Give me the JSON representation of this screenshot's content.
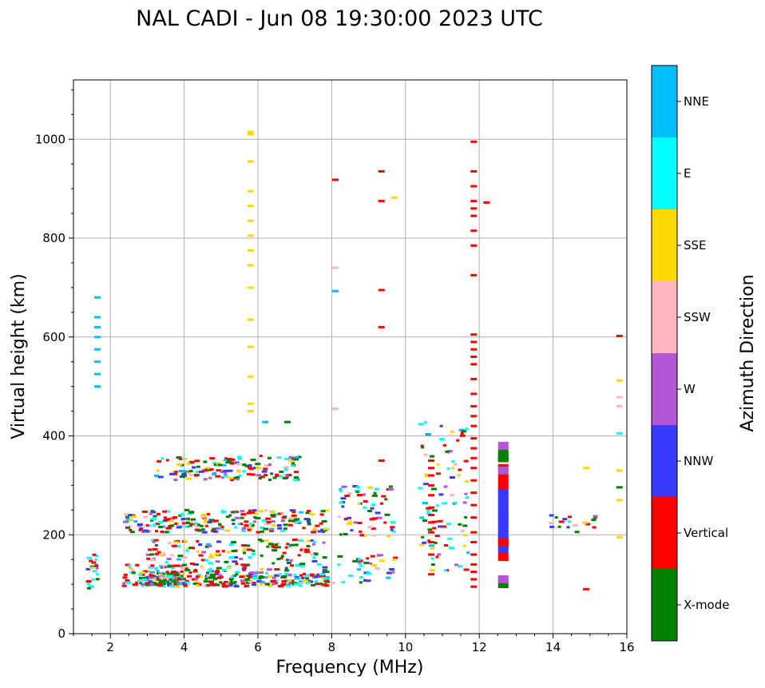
{
  "chart_data": {
    "type": "scatter",
    "title": "NAL CADI - Jun 08 19:30:00 2023 UTC",
    "xlabel": "Frequency (MHz)",
    "ylabel": "Virtual height (km)",
    "xlim": [
      1,
      16
    ],
    "ylim": [
      0,
      1120
    ],
    "x_ticks": [
      2,
      4,
      6,
      8,
      10,
      12,
      14,
      16
    ],
    "y_ticks": [
      0,
      200,
      400,
      600,
      800,
      1000
    ],
    "grid": true,
    "colorbar": {
      "label": "Azimuth Direction",
      "categories": [
        {
          "name": "X-mode",
          "color": "#008000"
        },
        {
          "name": "Vertical",
          "color": "#ff0000"
        },
        {
          "name": "NNW",
          "color": "#3a3aff"
        },
        {
          "name": "W",
          "color": "#b455d6"
        },
        {
          "name": "SSW",
          "color": "#ffb6c1"
        },
        {
          "name": "SSE",
          "color": "#ffd700"
        },
        {
          "name": "E",
          "color": "#00ffff"
        },
        {
          "name": "NNE",
          "color": "#00bfff"
        }
      ]
    },
    "clusters": [
      {
        "x": [
          1.4,
          1.7
        ],
        "y": [
          90,
          160
        ],
        "n": 20
      },
      {
        "x": [
          2.3,
          4.0
        ],
        "y": [
          95,
          140
        ],
        "n": 90
      },
      {
        "x": [
          3.0,
          7.9
        ],
        "y": [
          95,
          120
        ],
        "n": 220
      },
      {
        "x": [
          3.0,
          7.9
        ],
        "y": [
          120,
          190
        ],
        "n": 180
      },
      {
        "x": [
          2.4,
          7.9
        ],
        "y": [
          205,
          250
        ],
        "n": 220
      },
      {
        "x": [
          3.2,
          7.2
        ],
        "y": [
          310,
          360
        ],
        "n": 140
      },
      {
        "x": [
          8.0,
          9.8
        ],
        "y": [
          100,
          160
        ],
        "n": 35
      },
      {
        "x": [
          8.2,
          9.7
        ],
        "y": [
          195,
          300
        ],
        "n": 60
      },
      {
        "x": [
          10.4,
          11.7
        ],
        "y": [
          120,
          440
        ],
        "n": 90
      },
      {
        "x": [
          13.8,
          15.2
        ],
        "y": [
          205,
          240
        ],
        "n": 18
      }
    ],
    "series": [
      {
        "name": "Vertical trace 11.85 MHz",
        "category": "Vertical",
        "x": 11.85,
        "y": [
          95,
          110,
          125,
          140,
          160,
          185,
          205,
          235,
          260,
          285,
          310,
          335,
          355,
          375,
          395,
          420,
          440,
          460,
          485,
          515,
          545,
          560,
          575,
          590,
          605,
          725,
          785,
          815,
          845,
          860,
          875,
          905,
          935,
          995
        ]
      },
      {
        "x": 5.8,
        "category": "SSE",
        "y": [
          450,
          465,
          520,
          580,
          635,
          700,
          745,
          775,
          805,
          835,
          865,
          895,
          955,
          1010,
          1015
        ]
      },
      {
        "x": 12.65,
        "category": "NNW",
        "y": [
          170,
          180,
          190,
          200,
          210,
          220,
          230,
          240,
          250,
          260,
          270,
          280,
          290
        ]
      },
      {
        "x": 12.65,
        "category": "Vertical",
        "y": [
          155,
          185,
          300,
          315,
          335,
          355
        ]
      },
      {
        "x": 12.65,
        "category": "X-mode",
        "y": [
          100,
          355,
          365
        ]
      },
      {
        "x": 12.65,
        "category": "W",
        "y": [
          110,
          330,
          380
        ]
      },
      {
        "x": 10.7,
        "category": "Vertical",
        "y": [
          120,
          160,
          185,
          205,
          225,
          240,
          255,
          280,
          300,
          320,
          335,
          350
        ]
      },
      {
        "x": 9.35,
        "category": "Vertical",
        "y": [
          350,
          620,
          695,
          875,
          935
        ]
      },
      {
        "x": 1.65,
        "category": "NNE",
        "y": [
          500,
          525,
          550,
          575,
          600,
          620,
          640,
          680
        ]
      },
      {
        "x": 15.8,
        "category": "SSW",
        "y": [
          460,
          478
        ]
      },
      {
        "x": 15.8,
        "category": "Vertical",
        "y": [
          602
        ]
      },
      {
        "x": 15.8,
        "category": "X-mode",
        "y": [
          296
        ]
      },
      {
        "x": 15.8,
        "category": "SSE",
        "y": [
          195,
          270,
          330,
          512
        ]
      },
      {
        "x": 15.8,
        "category": "E",
        "y": [
          405
        ]
      },
      {
        "x": 14.9,
        "category": "SSE",
        "y": [
          335
        ]
      },
      {
        "x": 14.9,
        "category": "Vertical",
        "y": [
          90
        ]
      },
      {
        "x": 8.1,
        "category": "Vertical",
        "y": [
          918
        ]
      },
      {
        "x": 8.1,
        "category": "NNE",
        "y": [
          693
        ]
      },
      {
        "x": 8.1,
        "category": "SSW",
        "y": [
          455,
          740
        ]
      },
      {
        "x": 6.2,
        "category": "NNE",
        "y": [
          428
        ]
      },
      {
        "x": 6.8,
        "category": "X-mode",
        "y": [
          428
        ]
      },
      {
        "x": 12.2,
        "category": "Vertical",
        "y": [
          872
        ]
      },
      {
        "x": 9.7,
        "category": "SSE",
        "y": [
          882
        ]
      }
    ]
  }
}
